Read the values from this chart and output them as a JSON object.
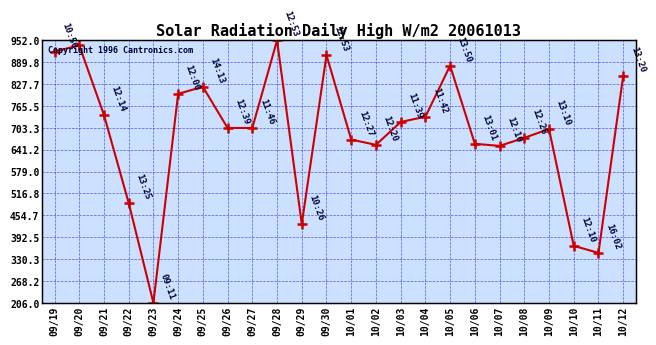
{
  "title": "Solar Radiation Daily High W/m2 20061013",
  "copyright": "Copyright 1996 Cantronics.com",
  "dates": [
    "09/19",
    "09/20",
    "09/21",
    "09/22",
    "09/23",
    "09/24",
    "09/25",
    "09/26",
    "09/27",
    "09/28",
    "09/29",
    "09/30",
    "10/01",
    "10/02",
    "10/03",
    "10/04",
    "10/05",
    "10/06",
    "10/07",
    "10/08",
    "10/09",
    "10/10",
    "10/11",
    "10/12"
  ],
  "values": [
    920,
    938,
    740,
    490,
    206,
    800,
    820,
    703,
    703,
    952,
    430,
    910,
    670,
    655,
    720,
    735,
    880,
    658,
    652,
    675,
    700,
    368,
    348,
    851
  ],
  "labels": [
    "10:50",
    "",
    "12:14",
    "13:25",
    "09:11",
    "12:00",
    "14:13",
    "12:39",
    "11:46",
    "12:53",
    "10:26",
    "12:53",
    "12:27",
    "12:20",
    "11:39",
    "11:42",
    "13:50",
    "13:01",
    "12:10",
    "12:28",
    "13:10",
    "12:10",
    "16:02",
    "13:20"
  ],
  "ymin": 206.0,
  "ymax": 952.0,
  "yticks": [
    206.0,
    268.2,
    330.3,
    392.5,
    454.7,
    516.8,
    579.0,
    641.2,
    703.3,
    765.5,
    827.7,
    889.8,
    952.0
  ],
  "line_color": "#cc0000",
  "marker_color": "#cc0000",
  "bg_color": "#ffffff",
  "plot_bg_color": "#cce0ff",
  "grid_color": "#0000cc",
  "title_color": "#000000",
  "label_color": "#000033"
}
